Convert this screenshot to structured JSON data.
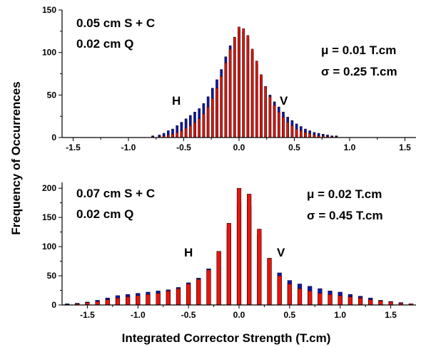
{
  "figure": {
    "ylabel": "Frequency of Occurrences",
    "xlabel": "Integrated Corrector Strength (T.cm)"
  },
  "colors": {
    "H": "#1016a8",
    "V": "#e8140c",
    "outline": "#000000"
  },
  "chart_data": [
    {
      "type": "bar",
      "title": "",
      "xlim": [
        -1.6,
        1.6
      ],
      "ylim": [
        0,
        150
      ],
      "xticks": [
        "-1.5",
        "-1.0",
        "-0.5",
        "0.0",
        "0.5",
        "1.0",
        "1.5"
      ],
      "yticks": [
        "0",
        "50",
        "100",
        "150"
      ],
      "bin_width": 0.02,
      "series_labels": {
        "H": "H",
        "V": "V"
      },
      "annotations": {
        "line1": "0.05 cm S + C",
        "line2": "0.02 cm Q",
        "mu": "μ = 0.01 T.cm",
        "sigma": "σ = 0.25 T.cm"
      },
      "series": [
        {
          "name": "H",
          "x": [
            -0.78,
            -0.72,
            -0.68,
            -0.64,
            -0.6,
            -0.56,
            -0.52,
            -0.48,
            -0.44,
            -0.4,
            -0.36,
            -0.32,
            -0.28,
            -0.24,
            -0.2,
            -0.16,
            -0.12,
            -0.08,
            -0.04,
            0.0,
            0.04,
            0.08,
            0.12,
            0.16,
            0.2,
            0.24,
            0.28,
            0.32,
            0.36,
            0.4,
            0.44,
            0.48,
            0.52,
            0.56,
            0.6,
            0.64,
            0.68,
            0.72,
            0.76,
            0.8,
            0.84,
            0.88
          ],
          "values": [
            2,
            3,
            5,
            8,
            10,
            14,
            18,
            22,
            26,
            30,
            34,
            40,
            48,
            58,
            68,
            80,
            95,
            108,
            118,
            126,
            124,
            116,
            100,
            86,
            72,
            60,
            50,
            42,
            36,
            30,
            24,
            20,
            16,
            13,
            10,
            8,
            6,
            5,
            4,
            3,
            2,
            2
          ]
        },
        {
          "name": "V",
          "x": [
            -0.78,
            -0.72,
            -0.68,
            -0.64,
            -0.6,
            -0.56,
            -0.52,
            -0.48,
            -0.44,
            -0.4,
            -0.36,
            -0.32,
            -0.28,
            -0.24,
            -0.2,
            -0.16,
            -0.12,
            -0.08,
            -0.04,
            0.0,
            0.04,
            0.08,
            0.12,
            0.16,
            0.2,
            0.24,
            0.28,
            0.32,
            0.36,
            0.4,
            0.44,
            0.48,
            0.52,
            0.56,
            0.6,
            0.64,
            0.68,
            0.72,
            0.76,
            0.8,
            0.84,
            0.88
          ],
          "values": [
            1,
            1,
            2,
            3,
            4,
            6,
            8,
            11,
            14,
            18,
            22,
            28,
            36,
            46,
            58,
            72,
            88,
            104,
            118,
            130,
            128,
            120,
            104,
            90,
            74,
            60,
            48,
            38,
            30,
            24,
            18,
            14,
            10,
            8,
            6,
            5,
            3,
            2,
            2,
            1,
            1,
            1
          ]
        }
      ]
    },
    {
      "type": "bar",
      "title": "",
      "xlim": [
        -1.75,
        1.75
      ],
      "ylim": [
        0,
        210
      ],
      "xticks": [
        "-1.5",
        "-1.0",
        "-0.5",
        "0.0",
        "0.5",
        "1.0",
        "1.5"
      ],
      "yticks": [
        "0",
        "50",
        "100",
        "150",
        "200"
      ],
      "bin_width": 0.04,
      "series_labels": {
        "H": "H",
        "V": "V"
      },
      "annotations": {
        "line1": "0.07 cm S + C",
        "line2": "0.02 cm Q",
        "mu": "μ = 0.02 T.cm",
        "sigma": "σ = 0.45 T.cm"
      },
      "series": [
        {
          "name": "H",
          "x": [
            -1.7,
            -1.6,
            -1.5,
            -1.4,
            -1.3,
            -1.2,
            -1.1,
            -1.0,
            -0.9,
            -0.8,
            -0.7,
            -0.6,
            -0.5,
            -0.4,
            -0.3,
            -0.2,
            -0.1,
            0.0,
            0.1,
            0.2,
            0.3,
            0.4,
            0.5,
            0.6,
            0.7,
            0.8,
            0.9,
            1.0,
            1.1,
            1.2,
            1.3,
            1.4,
            1.5,
            1.6,
            1.7
          ],
          "values": [
            2,
            3,
            5,
            8,
            12,
            16,
            18,
            20,
            22,
            24,
            26,
            30,
            38,
            46,
            62,
            90,
            130,
            175,
            170,
            120,
            80,
            55,
            42,
            36,
            32,
            28,
            24,
            22,
            18,
            15,
            12,
            8,
            6,
            4,
            2
          ]
        },
        {
          "name": "V",
          "x": [
            -1.7,
            -1.6,
            -1.5,
            -1.4,
            -1.3,
            -1.2,
            -1.1,
            -1.0,
            -0.9,
            -0.8,
            -0.7,
            -0.6,
            -0.5,
            -0.4,
            -0.3,
            -0.2,
            -0.1,
            0.0,
            0.1,
            0.2,
            0.3,
            0.4,
            0.5,
            0.6,
            0.7,
            0.8,
            0.9,
            1.0,
            1.1,
            1.2,
            1.3,
            1.4,
            1.5,
            1.6,
            1.7
          ],
          "values": [
            1,
            2,
            4,
            6,
            9,
            12,
            14,
            16,
            18,
            20,
            24,
            28,
            36,
            44,
            60,
            92,
            140,
            200,
            190,
            130,
            80,
            50,
            36,
            28,
            24,
            20,
            18,
            16,
            14,
            12,
            9,
            7,
            5,
            3,
            2
          ]
        }
      ]
    }
  ]
}
